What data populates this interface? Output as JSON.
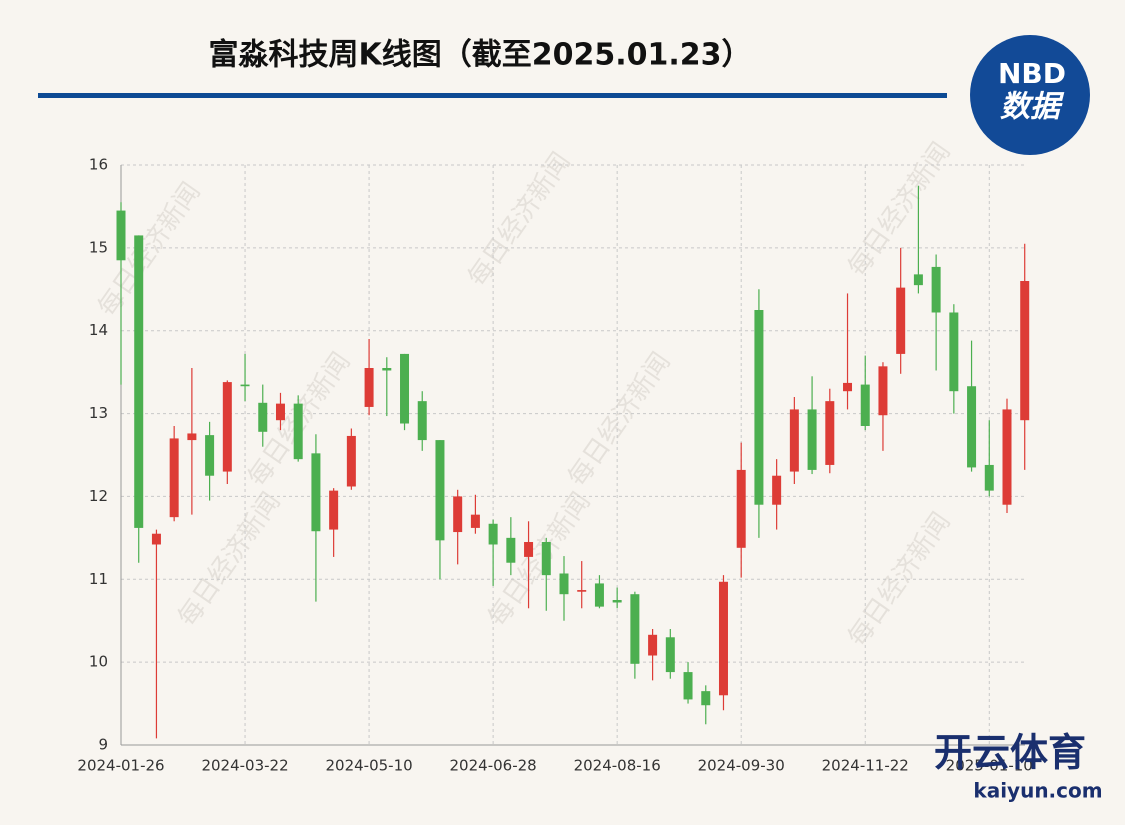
{
  "chart_data": {
    "type": "candlestick",
    "title": "富淼科技周K线图（截至2025.01.23）",
    "logo": [
      "NBD",
      "数据"
    ],
    "watermark": "每日经济新闻",
    "overlay": [
      "开云体育",
      "kaiyun.com"
    ],
    "categories": [
      "2024-01-26",
      null,
      null,
      null,
      null,
      null,
      null,
      "2024-03-22",
      null,
      null,
      null,
      null,
      null,
      null,
      "2024-05-10",
      null,
      null,
      null,
      null,
      null,
      null,
      "2024-06-28",
      null,
      null,
      null,
      null,
      null,
      null,
      "2024-08-16",
      null,
      null,
      null,
      null,
      null,
      null,
      "2024-09-30",
      null,
      null,
      null,
      null,
      null,
      null,
      "2024-11-22",
      null,
      null,
      null,
      null,
      null,
      null,
      "2025-01-10",
      null,
      null
    ],
    "open": [
      15.45,
      15.15,
      11.42,
      11.75,
      12.68,
      12.74,
      12.3,
      13.35,
      13.13,
      12.92,
      13.12,
      12.52,
      11.6,
      12.12,
      13.08,
      13.55,
      13.72,
      13.15,
      12.68,
      11.57,
      11.62,
      11.67,
      11.5,
      11.27,
      11.45,
      11.07,
      10.85,
      10.95,
      10.75,
      10.82,
      10.08,
      10.3,
      9.88,
      9.65,
      9.6,
      11.38,
      14.25,
      11.9,
      12.3,
      13.05,
      12.38,
      13.27,
      13.35,
      12.98,
      13.72,
      14.68,
      14.77,
      14.22,
      13.33,
      12.38,
      11.9,
      12.92
    ],
    "high": [
      15.55,
      15.15,
      11.6,
      12.85,
      13.55,
      12.9,
      13.4,
      13.72,
      13.35,
      13.25,
      13.22,
      12.75,
      12.1,
      12.82,
      13.9,
      13.68,
      13.72,
      13.27,
      12.68,
      12.08,
      12.02,
      11.72,
      11.75,
      11.7,
      11.5,
      11.28,
      11.22,
      11.05,
      10.9,
      10.85,
      10.4,
      10.4,
      10.0,
      9.72,
      11.05,
      12.65,
      14.5,
      12.45,
      13.2,
      13.45,
      13.3,
      14.45,
      13.7,
      13.62,
      15.0,
      15.75,
      14.92,
      14.32,
      13.88,
      12.92,
      13.18,
      15.05
    ],
    "low": [
      13.35,
      11.2,
      9.08,
      11.7,
      11.78,
      11.95,
      12.15,
      13.15,
      12.6,
      12.8,
      12.42,
      10.73,
      11.27,
      12.08,
      12.98,
      12.97,
      12.8,
      12.55,
      11.0,
      11.18,
      11.55,
      10.92,
      11.05,
      10.65,
      10.62,
      10.5,
      10.65,
      10.65,
      10.65,
      9.8,
      9.78,
      9.8,
      9.5,
      9.25,
      9.42,
      11.02,
      11.5,
      11.6,
      12.15,
      12.27,
      12.28,
      13.05,
      12.8,
      12.55,
      13.48,
      14.45,
      13.52,
      13.0,
      12.3,
      12.0,
      11.8,
      12.32
    ],
    "close": [
      14.85,
      11.62,
      11.55,
      12.7,
      12.76,
      12.25,
      13.38,
      13.33,
      12.78,
      13.12,
      12.45,
      11.58,
      12.07,
      12.73,
      13.55,
      13.52,
      12.88,
      12.68,
      11.47,
      12.0,
      11.78,
      11.42,
      11.2,
      11.45,
      11.05,
      10.82,
      10.87,
      10.67,
      10.72,
      9.98,
      10.33,
      9.88,
      9.55,
      9.48,
      10.97,
      12.32,
      11.9,
      12.25,
      13.05,
      12.32,
      13.15,
      13.37,
      12.85,
      13.57,
      14.52,
      14.55,
      14.22,
      13.27,
      12.35,
      12.07,
      13.05,
      14.6
    ],
    "up_color": "#dd3c36",
    "down_color": "#4caf50",
    "ylim": [
      9,
      16
    ],
    "yticks": [
      9,
      10,
      11,
      12,
      13,
      14,
      15,
      16
    ],
    "grid": true
  }
}
